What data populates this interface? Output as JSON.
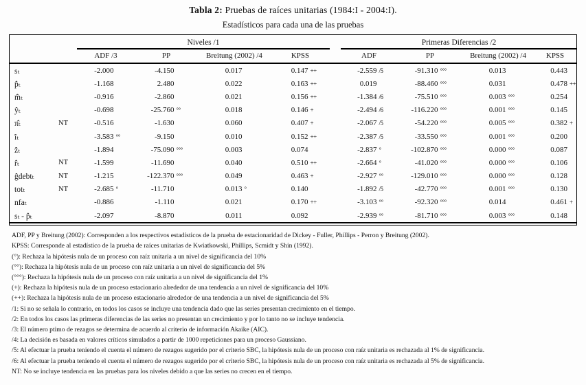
{
  "title": {
    "bold": "Tabla 2:",
    "rest": " Pruebas de raíces unitarias (1984:I - 2004:I).",
    "subtitle": "Estadísticos para cada una de las pruebas"
  },
  "table": {
    "groups": [
      "Niveles /1",
      "Primeras Diferencias /2"
    ],
    "subheaders": [
      "ADF /3",
      "PP",
      "Breitung (2002) /4",
      "KPSS",
      "ADF",
      "PP",
      "Breitung (2002) /4",
      "KPSS"
    ],
    "rows": [
      {
        "label": "sₜ",
        "nt": "",
        "cells": [
          [
            "-2.000",
            ""
          ],
          [
            "-4.150",
            ""
          ],
          [
            "0.017",
            ""
          ],
          [
            "0.147",
            "++"
          ],
          [
            "-2.559",
            "/5"
          ],
          [
            "-91.310",
            "°°°"
          ],
          [
            "0.013",
            ""
          ],
          [
            "0.443",
            ""
          ]
        ]
      },
      {
        "label": "p̂ₜ",
        "nt": "",
        "cells": [
          [
            "-1.168",
            ""
          ],
          [
            "2.480",
            ""
          ],
          [
            "0.022",
            ""
          ],
          [
            "0.163",
            "++"
          ],
          [
            "0.019",
            ""
          ],
          [
            "-88.460",
            "°°°"
          ],
          [
            "0.031",
            ""
          ],
          [
            "0.478",
            "++"
          ]
        ]
      },
      {
        "label": "m̂ₜ",
        "nt": "",
        "cells": [
          [
            "-0.916",
            ""
          ],
          [
            "-2.860",
            ""
          ],
          [
            "0.021",
            ""
          ],
          [
            "0.156",
            "++"
          ],
          [
            "-1.384",
            "/6"
          ],
          [
            "-75.510",
            "°°°"
          ],
          [
            "0.003",
            "°°°"
          ],
          [
            "0.254",
            ""
          ]
        ]
      },
      {
        "label": "ŷₜ",
        "nt": "",
        "cells": [
          [
            "-0.698",
            ""
          ],
          [
            "-25.760",
            "°°"
          ],
          [
            "0.018",
            ""
          ],
          [
            "0.146",
            "+"
          ],
          [
            "-2.494",
            "/6"
          ],
          [
            "-116.220",
            "°°°"
          ],
          [
            "0.001",
            "°°°"
          ],
          [
            "0.145",
            ""
          ]
        ]
      },
      {
        "label": "π̂ₜ",
        "nt": "NT",
        "cells": [
          [
            "-0.516",
            ""
          ],
          [
            "-1.630",
            ""
          ],
          [
            "0.060",
            ""
          ],
          [
            "0.407",
            "+"
          ],
          [
            "-2.067",
            "/5"
          ],
          [
            "-54.220",
            "°°°"
          ],
          [
            "0.005",
            "°°°"
          ],
          [
            "0.382",
            "+"
          ]
        ]
      },
      {
        "label": "îₜ",
        "nt": "",
        "cells": [
          [
            "-3.583",
            "°°"
          ],
          [
            "-9.150",
            ""
          ],
          [
            "0.010",
            ""
          ],
          [
            "0.152",
            "++"
          ],
          [
            "-2.387",
            "/5"
          ],
          [
            "-33.550",
            "°°°"
          ],
          [
            "0.001",
            "°°°"
          ],
          [
            "0.200",
            ""
          ]
        ]
      },
      {
        "label": "ẑₜ",
        "nt": "",
        "cells": [
          [
            "-1.894",
            ""
          ],
          [
            "-75.090",
            "°°°"
          ],
          [
            "0.003",
            ""
          ],
          [
            "0.074",
            ""
          ],
          [
            "-2.837",
            "°"
          ],
          [
            "-102.870",
            "°°°"
          ],
          [
            "0.000",
            "°°°"
          ],
          [
            "0.087",
            ""
          ]
        ]
      },
      {
        "label": "r̂ₜ",
        "nt": "NT",
        "cells": [
          [
            "-1.599",
            ""
          ],
          [
            "-11.690",
            ""
          ],
          [
            "0.040",
            ""
          ],
          [
            "0.510",
            "++"
          ],
          [
            "-2.664",
            "°"
          ],
          [
            "-41.020",
            "°°°"
          ],
          [
            "0.000",
            "°°°"
          ],
          [
            "0.106",
            ""
          ]
        ]
      },
      {
        "label": "ĝdebtₜ",
        "nt": "NT",
        "cells": [
          [
            "-1.215",
            ""
          ],
          [
            "-122.370",
            "°°°"
          ],
          [
            "0.049",
            ""
          ],
          [
            "0.463",
            "+"
          ],
          [
            "-2.927",
            "°°"
          ],
          [
            "-129.010",
            "°°°"
          ],
          [
            "0.000",
            "°°°"
          ],
          [
            "0.128",
            ""
          ]
        ]
      },
      {
        "label": "totₜ",
        "nt": "NT",
        "cells": [
          [
            "-2.685",
            "°"
          ],
          [
            "-11.710",
            ""
          ],
          [
            "0.013",
            "°"
          ],
          [
            "0.140",
            ""
          ],
          [
            "-1.892",
            "/5"
          ],
          [
            "-42.770",
            "°°°"
          ],
          [
            "0.001",
            "°°°"
          ],
          [
            "0.130",
            ""
          ]
        ]
      },
      {
        "label": "nfaₜ",
        "nt": "",
        "cells": [
          [
            "-0.886",
            ""
          ],
          [
            "-1.110",
            ""
          ],
          [
            "0.021",
            ""
          ],
          [
            "0.170",
            "++"
          ],
          [
            "-3.103",
            "°°"
          ],
          [
            "-92.320",
            "°°°"
          ],
          [
            "0.014",
            ""
          ],
          [
            "0.461",
            "+"
          ]
        ]
      },
      {
        "label": "sₜ - p̂ₜ",
        "nt": "",
        "cells": [
          [
            "-2.097",
            ""
          ],
          [
            "-8.870",
            ""
          ],
          [
            "0.011",
            ""
          ],
          [
            "0.092",
            ""
          ],
          [
            "-2.939",
            "°°"
          ],
          [
            "-81.710",
            "°°°"
          ],
          [
            "0.003",
            "°°°"
          ],
          [
            "0.148",
            ""
          ]
        ]
      }
    ]
  },
  "footnotes": [
    "ADF, PP y Breitung (2002): Corresponden a los respectivos estadísticos de la prueba de estacionaridad de Dickey - Fuller, Phillips - Perron y Breitung (2002).",
    "KPSS: Corresponde al estadístico de la prueba de raíces unitarias de Kwiatkowski, Phillips, Scmidt y Shin (1992).",
    "(°): Rechaza la hipótesis nula de un proceso con raíz unitaria a un nivel de significancia del 10%",
    "(°°): Rechaza la hipótesis nula de un proceso con raíz unitaria a un nivel de significancia del 5%",
    "(°°°):  Rechaza la hipótesis nula de un proceso con raíz unitaria a un nivel de significancia del 1%",
    "(+): Rechaza la hipótesis nula de un proceso estacionario alrededor de una tendencia a un nivel de significancia del 10%",
    "(++): Rechaza la hipótesis nula de un proceso estacionario alrededor de una tendencia a un nivel de significancia del 5%",
    "/1: Si no se señala lo contrario, en todos los casos se incluye una tendencia dado que las series presentan crecimiento en el tiempo.",
    "/2: En todos los casos las primeras diferencias de las series no presentan un crecimiento y por lo tanto no se incluye tendencia.",
    "/3: El número ptimo de rezagos se determina de acuerdo al criterio de información Akaike (AIC).",
    "/4: La decisión es basada en valores críticos simulados a partir de 1000 repeticiones para un proceso Gaussiano.",
    "/5: Al efectuar la prueba teniendo el cuenta el número de rezagos sugerido por el criterio SBC, la hipótesis nula de un proceso con raíz unitaria es rechazada al 1% de significancia.",
    "/6: Al efectuar la prueba teniendo el cuenta el número de rezagos sugerido por el criterio SBC, la hipótesis nula de un proceso con raíz unitaria es rechazada al 5% de significancia.",
    "NT: No se incluye tendencia en las pruebas para los niveles debido a que las series no crecen en el tiempo."
  ]
}
